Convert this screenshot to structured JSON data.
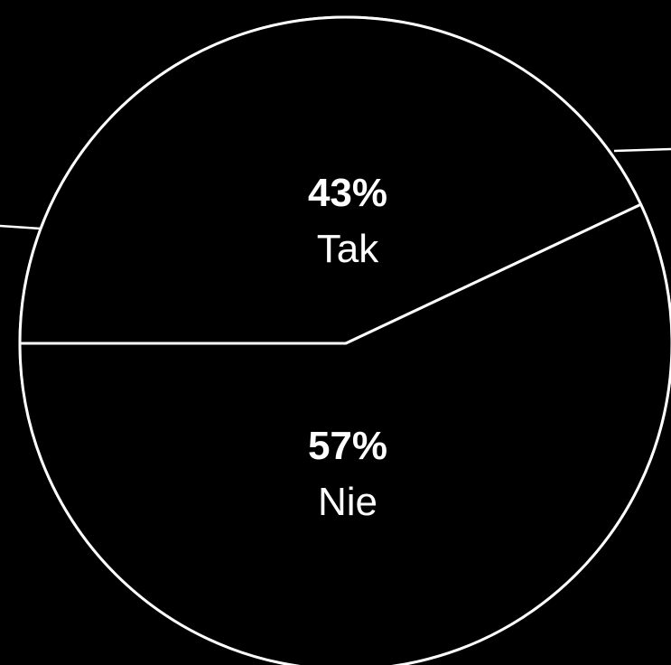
{
  "chart_data": {
    "type": "pie",
    "title": "",
    "slices": [
      {
        "label": "Tak",
        "value": 43,
        "value_label": "43%"
      },
      {
        "label": "Nie",
        "value": 57,
        "value_label": "57%"
      }
    ],
    "legend": "none",
    "colors": {
      "background": "#000000",
      "slice_fill": "#000000",
      "stroke": "#ffffff",
      "text": "#ffffff"
    }
  }
}
